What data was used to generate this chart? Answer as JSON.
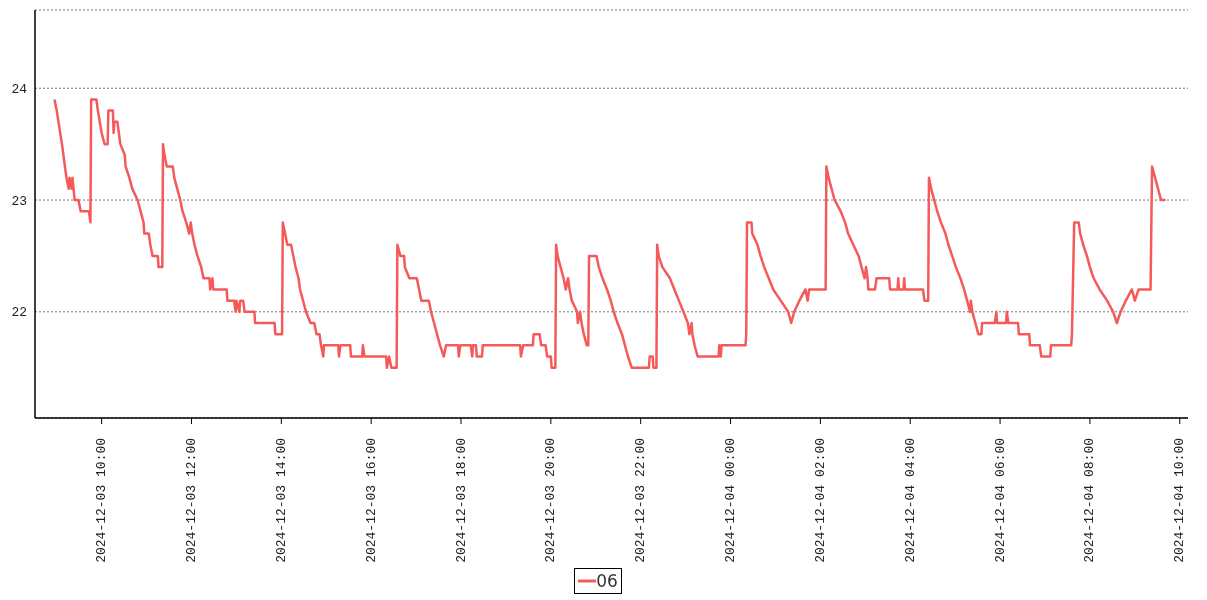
{
  "chart_data": {
    "type": "line",
    "x": [
      "2024-12-03T08:57",
      "2024-12-03T09:00",
      "2024-12-03T09:07",
      "2024-12-03T09:11",
      "2024-12-03T09:13",
      "2024-12-03T09:16",
      "2024-12-03T09:17",
      "2024-12-03T09:20",
      "2024-12-03T09:21",
      "2024-12-03T09:24",
      "2024-12-03T09:29",
      "2024-12-03T09:32",
      "2024-12-03T09:43",
      "2024-12-03T09:45",
      "2024-12-03T09:46",
      "2024-12-03T09:53",
      "2024-12-03T09:55",
      "2024-12-03T10:00",
      "2024-12-03T10:04",
      "2024-12-03T10:08",
      "2024-12-03T10:09",
      "2024-12-03T10:15",
      "2024-12-03T10:16",
      "2024-12-03T10:17",
      "2024-12-03T10:21",
      "2024-12-03T10:23",
      "2024-12-03T10:25",
      "2024-12-03T10:31",
      "2024-12-03T10:32",
      "2024-12-03T10:37",
      "2024-12-03T10:41",
      "2024-12-03T10:48",
      "2024-12-03T10:52",
      "2024-12-03T10:56",
      "2024-12-03T10:57",
      "2024-12-03T11:03",
      "2024-12-03T11:05",
      "2024-12-03T11:08",
      "2024-12-03T11:15",
      "2024-12-03T11:16",
      "2024-12-03T11:21",
      "2024-12-03T11:22",
      "2024-12-03T11:24",
      "2024-12-03T11:27",
      "2024-12-03T11:35",
      "2024-12-03T11:37",
      "2024-12-03T11:41",
      "2024-12-03T11:45",
      "2024-12-03T11:48",
      "2024-12-03T11:53",
      "2024-12-03T11:57",
      "2024-12-03T11:59",
      "2024-12-03T12:01",
      "2024-12-03T12:04",
      "2024-12-03T12:08",
      "2024-12-03T12:13",
      "2024-12-03T12:16",
      "2024-12-03T12:24",
      "2024-12-03T12:25",
      "2024-12-03T12:28",
      "2024-12-03T12:29",
      "2024-12-03T12:47",
      "2024-12-03T12:48",
      "2024-12-03T12:57",
      "2024-12-03T12:59",
      "2024-12-03T13:00",
      "2024-12-03T13:04",
      "2024-12-03T13:05",
      "2024-12-03T13:09",
      "2024-12-03T13:11",
      "2024-12-03T13:24",
      "2024-12-03T13:25",
      "2024-12-03T13:51",
      "2024-12-03T13:52",
      "2024-12-03T14:01",
      "2024-12-03T14:02",
      "2024-12-03T14:05",
      "2024-12-03T14:08",
      "2024-12-03T14:13",
      "2024-12-03T14:16",
      "2024-12-03T14:19",
      "2024-12-03T14:23",
      "2024-12-03T14:25",
      "2024-12-03T14:29",
      "2024-12-03T14:33",
      "2024-12-03T14:39",
      "2024-12-03T14:44",
      "2024-12-03T14:47",
      "2024-12-03T14:51",
      "2024-12-03T14:53",
      "2024-12-03T14:56",
      "2024-12-03T14:57",
      "2024-12-03T15:16",
      "2024-12-03T15:17",
      "2024-12-03T15:19",
      "2024-12-03T15:32",
      "2024-12-03T15:33",
      "2024-12-03T15:48",
      "2024-12-03T15:49",
      "2024-12-03T15:51",
      "2024-12-03T16:20",
      "2024-12-03T16:21",
      "2024-12-03T16:24",
      "2024-12-03T16:27",
      "2024-12-03T16:34",
      "2024-12-03T16:35",
      "2024-12-03T16:39",
      "2024-12-03T16:44",
      "2024-12-03T16:45",
      "2024-12-03T16:51",
      "2024-12-03T17:01",
      "2024-12-03T17:04",
      "2024-12-03T17:07",
      "2024-12-03T17:17",
      "2024-12-03T17:20",
      "2024-12-03T17:24",
      "2024-12-03T17:28",
      "2024-12-03T17:32",
      "2024-12-03T17:37",
      "2024-12-03T17:40",
      "2024-12-03T17:56",
      "2024-12-03T17:57",
      "2024-12-03T17:59",
      "2024-12-03T18:13",
      "2024-12-03T18:15",
      "2024-12-03T18:16",
      "2024-12-03T18:20",
      "2024-12-03T18:21",
      "2024-12-03T18:28",
      "2024-12-03T18:29",
      "2024-12-03T19:19",
      "2024-12-03T19:20",
      "2024-12-03T19:23",
      "2024-12-03T19:36",
      "2024-12-03T19:37",
      "2024-12-03T19:45",
      "2024-12-03T19:47",
      "2024-12-03T19:53",
      "2024-12-03T19:55",
      "2024-12-03T20:00",
      "2024-12-03T20:01",
      "2024-12-03T20:06",
      "2024-12-03T20:07",
      "2024-12-03T20:09",
      "2024-12-03T20:13",
      "2024-12-03T20:17",
      "2024-12-03T20:20",
      "2024-12-03T20:23",
      "2024-12-03T20:25",
      "2024-12-03T20:28",
      "2024-12-03T20:35",
      "2024-12-03T20:36",
      "2024-12-03T20:39",
      "2024-12-03T20:41",
      "2024-12-03T20:44",
      "2024-12-03T20:48",
      "2024-12-03T20:50",
      "2024-12-03T20:51",
      "2024-12-03T21:01",
      "2024-12-03T21:04",
      "2024-12-03T21:09",
      "2024-12-03T21:15",
      "2024-12-03T21:20",
      "2024-12-03T21:24",
      "2024-12-03T21:29",
      "2024-12-03T21:35",
      "2024-12-03T21:39",
      "2024-12-03T21:43",
      "2024-12-03T21:48",
      "2024-12-03T22:11",
      "2024-12-03T22:12",
      "2024-12-03T22:16",
      "2024-12-03T22:17",
      "2024-12-03T22:21",
      "2024-12-03T22:22",
      "2024-12-03T22:24",
      "2024-12-03T22:29",
      "2024-12-03T22:39",
      "2024-12-03T22:45",
      "2024-12-03T22:51",
      "2024-12-03T22:57",
      "2024-12-03T23:03",
      "2024-12-03T23:05",
      "2024-12-03T23:08",
      "2024-12-03T23:09",
      "2024-12-03T23:12",
      "2024-12-03T23:16",
      "2024-12-03T23:44",
      "2024-12-03T23:45",
      "2024-12-03T23:47",
      "2024-12-03T23:48",
      "2024-12-04T00:20",
      "2024-12-04T00:21",
      "2024-12-04T00:22",
      "2024-12-04T00:28",
      "2024-12-04T00:29",
      "2024-12-04T00:36",
      "2024-12-04T00:40",
      "2024-12-04T00:45",
      "2024-12-04T00:51",
      "2024-12-04T00:57",
      "2024-12-04T01:07",
      "2024-12-04T01:17",
      "2024-12-04T01:21",
      "2024-12-04T01:25",
      "2024-12-04T01:32",
      "2024-12-04T01:40",
      "2024-12-04T01:43",
      "2024-12-04T01:45",
      "2024-12-04T02:07",
      "2024-12-04T02:08",
      "2024-12-04T02:11",
      "2024-12-04T02:15",
      "2024-12-04T02:19",
      "2024-12-04T02:27",
      "2024-12-04T02:33",
      "2024-12-04T02:37",
      "2024-12-04T02:44",
      "2024-12-04T02:51",
      "2024-12-04T02:55",
      "2024-12-04T02:59",
      "2024-12-04T03:01",
      "2024-12-04T03:03",
      "2024-12-04T03:04",
      "2024-12-04T03:13",
      "2024-12-04T03:15",
      "2024-12-04T03:32",
      "2024-12-04T03:33",
      "2024-12-04T03:43",
      "2024-12-04T03:44",
      "2024-12-04T03:45",
      "2024-12-04T03:51",
      "2024-12-04T03:52",
      "2024-12-04T03:53",
      "2024-12-04T04:17",
      "2024-12-04T04:19",
      "2024-12-04T04:24",
      "2024-12-04T04:25",
      "2024-12-04T04:28",
      "2024-12-04T04:32",
      "2024-12-04T04:36",
      "2024-12-04T04:41",
      "2024-12-04T04:47",
      "2024-12-04T04:51",
      "2024-12-04T04:56",
      "2024-12-04T05:01",
      "2024-12-04T05:07",
      "2024-12-04T05:12",
      "2024-12-04T05:16",
      "2024-12-04T05:20",
      "2024-12-04T05:21",
      "2024-12-04T05:23",
      "2024-12-04T05:27",
      "2024-12-04T05:31",
      "2024-12-04T05:35",
      "2024-12-04T05:36",
      "2024-12-04T05:53",
      "2024-12-04T05:55",
      "2024-12-04T05:56",
      "2024-12-04T06:08",
      "2024-12-04T06:09",
      "2024-12-04T06:11",
      "2024-12-04T06:24",
      "2024-12-04T06:25",
      "2024-12-04T06:39",
      "2024-12-04T06:40",
      "2024-12-04T06:53",
      "2024-12-04T06:55",
      "2024-12-04T07:07",
      "2024-12-04T07:08",
      "2024-12-04T07:35",
      "2024-12-04T07:36",
      "2024-12-04T07:39",
      "2024-12-04T07:45",
      "2024-12-04T07:47",
      "2024-12-04T07:51",
      "2024-12-04T07:56",
      "2024-12-04T08:00",
      "2024-12-04T08:05",
      "2024-12-04T08:13",
      "2024-12-04T08:23",
      "2024-12-04T08:31",
      "2024-12-04T08:36",
      "2024-12-04T08:41",
      "2024-12-04T08:48",
      "2024-12-04T08:56",
      "2024-12-04T09:00",
      "2024-12-04T09:05",
      "2024-12-04T09:21",
      "2024-12-04T09:23",
      "2024-12-04T09:27",
      "2024-12-04T09:31",
      "2024-12-04T09:35",
      "2024-12-04T09:41"
    ],
    "series": [
      {
        "name": "06",
        "color": "#f55a5a",
        "values": [
          23.9,
          23.8,
          23.5,
          23.3,
          23.2,
          23.1,
          23.2,
          23.1,
          23.2,
          23.0,
          23.0,
          22.9,
          22.9,
          22.8,
          23.9,
          23.9,
          23.8,
          23.6,
          23.5,
          23.5,
          23.8,
          23.8,
          23.6,
          23.7,
          23.7,
          23.6,
          23.5,
          23.4,
          23.3,
          23.2,
          23.1,
          23.0,
          22.9,
          22.8,
          22.7,
          22.7,
          22.6,
          22.5,
          22.5,
          22.4,
          22.4,
          23.5,
          23.4,
          23.3,
          23.3,
          23.2,
          23.1,
          23.0,
          22.9,
          22.8,
          22.7,
          22.8,
          22.7,
          22.6,
          22.5,
          22.4,
          22.3,
          22.3,
          22.2,
          22.3,
          22.2,
          22.2,
          22.1,
          22.1,
          22.0,
          22.1,
          22.0,
          22.1,
          22.1,
          22.0,
          22.0,
          21.9,
          21.9,
          21.8,
          21.8,
          22.8,
          22.7,
          22.6,
          22.6,
          22.5,
          22.4,
          22.3,
          22.2,
          22.1,
          22.0,
          21.9,
          21.9,
          21.8,
          21.8,
          21.7,
          21.6,
          21.7,
          21.7,
          21.6,
          21.7,
          21.7,
          21.6,
          21.6,
          21.7,
          21.6,
          21.6,
          21.5,
          21.6,
          21.5,
          21.5,
          22.6,
          22.5,
          22.5,
          22.4,
          22.3,
          22.3,
          22.2,
          22.1,
          22.1,
          22.0,
          21.9,
          21.8,
          21.7,
          21.6,
          21.7,
          21.7,
          21.6,
          21.7,
          21.7,
          21.6,
          21.7,
          21.7,
          21.6,
          21.6,
          21.7,
          21.7,
          21.6,
          21.7,
          21.7,
          21.8,
          21.8,
          21.7,
          21.7,
          21.6,
          21.6,
          21.5,
          21.5,
          22.6,
          22.5,
          22.4,
          22.3,
          22.2,
          22.3,
          22.2,
          22.1,
          22.0,
          21.9,
          22.0,
          21.9,
          21.8,
          21.7,
          21.7,
          22.5,
          22.5,
          22.4,
          22.3,
          22.2,
          22.1,
          22.0,
          21.9,
          21.8,
          21.7,
          21.6,
          21.5,
          21.5,
          21.6,
          21.6,
          21.5,
          21.5,
          22.6,
          22.5,
          22.4,
          22.3,
          22.2,
          22.1,
          22.0,
          21.9,
          21.8,
          21.9,
          21.8,
          21.7,
          21.6,
          21.6,
          21.7,
          21.6,
          21.7,
          21.7,
          21.8,
          22.8,
          22.8,
          22.7,
          22.6,
          22.5,
          22.4,
          22.3,
          22.2,
          22.1,
          22.0,
          21.9,
          22.0,
          22.1,
          22.2,
          22.1,
          22.2,
          22.2,
          23.3,
          23.2,
          23.1,
          23.0,
          22.9,
          22.8,
          22.7,
          22.6,
          22.5,
          22.4,
          22.3,
          22.4,
          22.3,
          22.2,
          22.2,
          22.3,
          22.3,
          22.2,
          22.2,
          22.3,
          22.2,
          22.2,
          22.3,
          22.2,
          22.2,
          22.1,
          22.1,
          23.2,
          23.1,
          23.0,
          22.9,
          22.8,
          22.7,
          22.6,
          22.5,
          22.4,
          22.3,
          22.2,
          22.1,
          22.0,
          22.1,
          22.0,
          21.9,
          21.8,
          21.8,
          21.9,
          21.9,
          22.0,
          21.9,
          21.9,
          22.0,
          21.9,
          21.9,
          21.8,
          21.8,
          21.7,
          21.7,
          21.6,
          21.6,
          21.7,
          21.7,
          21.8,
          22.8,
          22.8,
          22.7,
          22.6,
          22.5,
          22.4,
          22.3,
          22.2,
          22.1,
          22.0,
          21.9,
          22.0,
          22.1,
          22.2,
          22.1,
          22.2,
          22.2,
          23.3,
          23.2,
          23.1,
          23.0,
          23.0
        ]
      }
    ],
    "xlim": [
      "2024-12-03T08:31",
      "2024-12-04T10:11"
    ],
    "xticks": [
      {
        "value": "2024-12-03T10:00",
        "label": "2024-12-03 10:00"
      },
      {
        "value": "2024-12-03T12:00",
        "label": "2024-12-03 12:00"
      },
      {
        "value": "2024-12-03T14:00",
        "label": "2024-12-03 14:00"
      },
      {
        "value": "2024-12-03T16:00",
        "label": "2024-12-03 16:00"
      },
      {
        "value": "2024-12-03T18:00",
        "label": "2024-12-03 18:00"
      },
      {
        "value": "2024-12-03T20:00",
        "label": "2024-12-03 20:00"
      },
      {
        "value": "2024-12-03T22:00",
        "label": "2024-12-03 22:00"
      },
      {
        "value": "2024-12-04T00:00",
        "label": "2024-12-04 00:00"
      },
      {
        "value": "2024-12-04T02:00",
        "label": "2024-12-04 02:00"
      },
      {
        "value": "2024-12-04T04:00",
        "label": "2024-12-04 04:00"
      },
      {
        "value": "2024-12-04T06:00",
        "label": "2024-12-04 06:00"
      },
      {
        "value": "2024-12-04T08:00",
        "label": "2024-12-04 08:00"
      },
      {
        "value": "2024-12-04T10:00",
        "label": "2024-12-04 10:00"
      }
    ],
    "ylim": [
      21.05,
      24.7
    ],
    "yticks": [
      22,
      23,
      24
    ],
    "grid": "y",
    "legend": "bottom",
    "line_style": "solid"
  }
}
